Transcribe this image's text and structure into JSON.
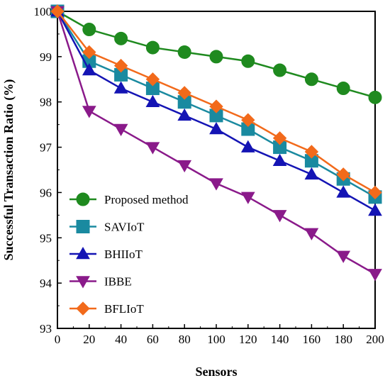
{
  "chart_data": {
    "type": "line",
    "xlabel": "Sensors",
    "ylabel": "Successful Transaction Ratio (%)",
    "xlim": [
      0,
      200
    ],
    "ylim": [
      93,
      100
    ],
    "xticks": [
      0,
      20,
      40,
      60,
      80,
      100,
      120,
      140,
      160,
      180,
      200
    ],
    "yticks": [
      93,
      94,
      95,
      96,
      97,
      98,
      99,
      100
    ],
    "grid": false,
    "legend_position": "bottom-left",
    "x": [
      0,
      20,
      40,
      60,
      80,
      100,
      120,
      140,
      160,
      180,
      200
    ],
    "series": [
      {
        "name": "Proposed method",
        "marker": "circle",
        "color": "#1f8a1f",
        "values": [
          100,
          99.6,
          99.4,
          99.2,
          99.1,
          99.0,
          98.9,
          98.7,
          98.5,
          98.3,
          98.1
        ]
      },
      {
        "name": "SAVIoT",
        "marker": "square",
        "color": "#1a8aa0",
        "values": [
          100,
          98.9,
          98.6,
          98.3,
          98.0,
          97.7,
          97.4,
          97.0,
          96.7,
          96.3,
          95.9
        ]
      },
      {
        "name": "BHIIoT",
        "marker": "triangle-up",
        "color": "#1414b4",
        "values": [
          100,
          98.7,
          98.3,
          98.0,
          97.7,
          97.4,
          97.0,
          96.7,
          96.4,
          96.0,
          95.6
        ]
      },
      {
        "name": "IBBE",
        "marker": "triangle-down",
        "color": "#8a1a8a",
        "values": [
          100,
          97.8,
          97.4,
          97.0,
          96.6,
          96.2,
          95.9,
          95.5,
          95.1,
          94.6,
          94.2
        ]
      },
      {
        "name": "BFLIoT",
        "marker": "diamond",
        "color": "#f26a1b",
        "values": [
          100,
          99.1,
          98.8,
          98.5,
          98.2,
          97.9,
          97.6,
          97.2,
          96.9,
          96.4,
          96.0
        ]
      }
    ]
  }
}
